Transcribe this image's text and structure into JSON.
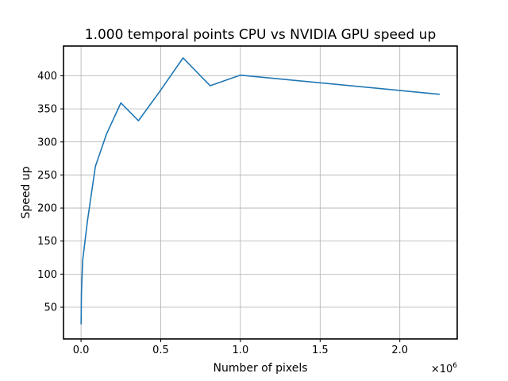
{
  "chart_data": {
    "type": "line",
    "title": "1.000 temporal points CPU vs NVIDIA GPU speed up",
    "xlabel": "Number of pixels",
    "ylabel": "Speed up",
    "x_offset_label": "×10",
    "x_offset_exponent": "6",
    "xlim": [
      -0.11,
      2.36
    ],
    "ylim": [
      2,
      445
    ],
    "grid": true,
    "xticks": [
      0.0,
      0.5,
      1.0,
      1.5,
      2.0
    ],
    "xtick_labels": [
      "0.0",
      "0.5",
      "1.0",
      "1.5",
      "2.0"
    ],
    "yticks": [
      50,
      100,
      150,
      200,
      250,
      300,
      350,
      400
    ],
    "ytick_labels": [
      "50",
      "100",
      "150",
      "200",
      "250",
      "300",
      "350",
      "400"
    ],
    "series": [
      {
        "color": "#1f77b4",
        "x": [
          0.0004,
          0.0025,
          0.01,
          0.04,
          0.09,
          0.16,
          0.25,
          0.36,
          0.49,
          0.64,
          0.81,
          1.0,
          2.25
        ],
        "y": [
          24,
          70,
          120,
          180,
          263,
          312,
          359,
          332,
          375,
          427,
          385,
          401,
          372
        ]
      }
    ]
  }
}
